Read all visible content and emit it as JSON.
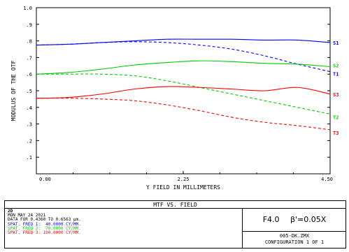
{
  "chart_data": {
    "type": "line",
    "title": "MTF VS. FIELD",
    "xlabel": "Y FIELD IN MILLIMETERS",
    "ylabel": "MODULUS OF THE OTF",
    "xlim": [
      0,
      4.5
    ],
    "ylim": [
      0,
      1.0
    ],
    "x_ticks": [
      "0.00",
      "2.25",
      "4.50"
    ],
    "y_ticks": [
      "1.0",
      ".9",
      ".8",
      ".7",
      ".6",
      ".5",
      ".4",
      ".3",
      ".2",
      ".1"
    ],
    "grid": false,
    "series": [
      {
        "name": "S1",
        "color": "#0000ff",
        "dash": false,
        "x": [
          0,
          0.5,
          1.0,
          1.5,
          2.0,
          2.5,
          3.0,
          3.5,
          4.0,
          4.5
        ],
        "y": [
          0.775,
          0.78,
          0.79,
          0.8,
          0.81,
          0.81,
          0.81,
          0.805,
          0.805,
          0.79
        ]
      },
      {
        "name": "T1",
        "color": "#0000ff",
        "dash": true,
        "x": [
          0,
          0.5,
          1.0,
          1.5,
          2.0,
          2.5,
          3.0,
          3.5,
          4.0,
          4.5
        ],
        "y": [
          0.775,
          0.78,
          0.79,
          0.795,
          0.79,
          0.775,
          0.75,
          0.71,
          0.66,
          0.615
        ]
      },
      {
        "name": "S2",
        "color": "#00cc00",
        "dash": false,
        "x": [
          0,
          0.5,
          1.0,
          1.5,
          2.0,
          2.5,
          3.0,
          3.5,
          4.0,
          4.5
        ],
        "y": [
          0.6,
          0.61,
          0.63,
          0.655,
          0.67,
          0.68,
          0.675,
          0.665,
          0.66,
          0.645
        ]
      },
      {
        "name": "T2",
        "color": "#00cc00",
        "dash": true,
        "x": [
          0,
          0.5,
          1.0,
          1.5,
          2.0,
          2.5,
          3.0,
          3.5,
          4.0,
          4.5
        ],
        "y": [
          0.6,
          0.6,
          0.6,
          0.59,
          0.56,
          0.52,
          0.48,
          0.44,
          0.4,
          0.36
        ]
      },
      {
        "name": "S3",
        "color": "#ff0000",
        "dash": false,
        "x": [
          0,
          0.5,
          1.0,
          1.5,
          2.0,
          2.5,
          3.0,
          3.5,
          4.0,
          4.5
        ],
        "y": [
          0.455,
          0.46,
          0.48,
          0.51,
          0.525,
          0.52,
          0.51,
          0.5,
          0.52,
          0.48
        ]
      },
      {
        "name": "T3",
        "color": "#ff0000",
        "dash": true,
        "x": [
          0,
          0.5,
          1.0,
          1.5,
          2.0,
          2.5,
          3.0,
          3.5,
          4.0,
          4.5
        ],
        "y": [
          0.455,
          0.455,
          0.45,
          0.44,
          0.415,
          0.38,
          0.34,
          0.31,
          0.29,
          0.265
        ]
      }
    ]
  },
  "info": {
    "title": "MTF VS. FIELD",
    "dimension": "2D",
    "date": "MON MAY 24 2021",
    "wavelengths": "DATA FOR 0.4360 TO 0.6563 µm.",
    "freq1": "SPAT. FREQ 1:  40.0000 CY/MM.",
    "freq2": "SPAT. FREQ 2:  70.0000 CY/MM.",
    "freq3": "SPAT. FREQ 3: 100.0000 CY/MM.",
    "fnumber": "F4.0",
    "magnification": "β'=0.05X",
    "filename": "005-DK.ZMX",
    "configuration": "CONFIGURATION 1 OF 1"
  },
  "colors": {
    "freq1": "#0000ff",
    "freq2": "#00cc00",
    "freq3": "#ff0000"
  }
}
